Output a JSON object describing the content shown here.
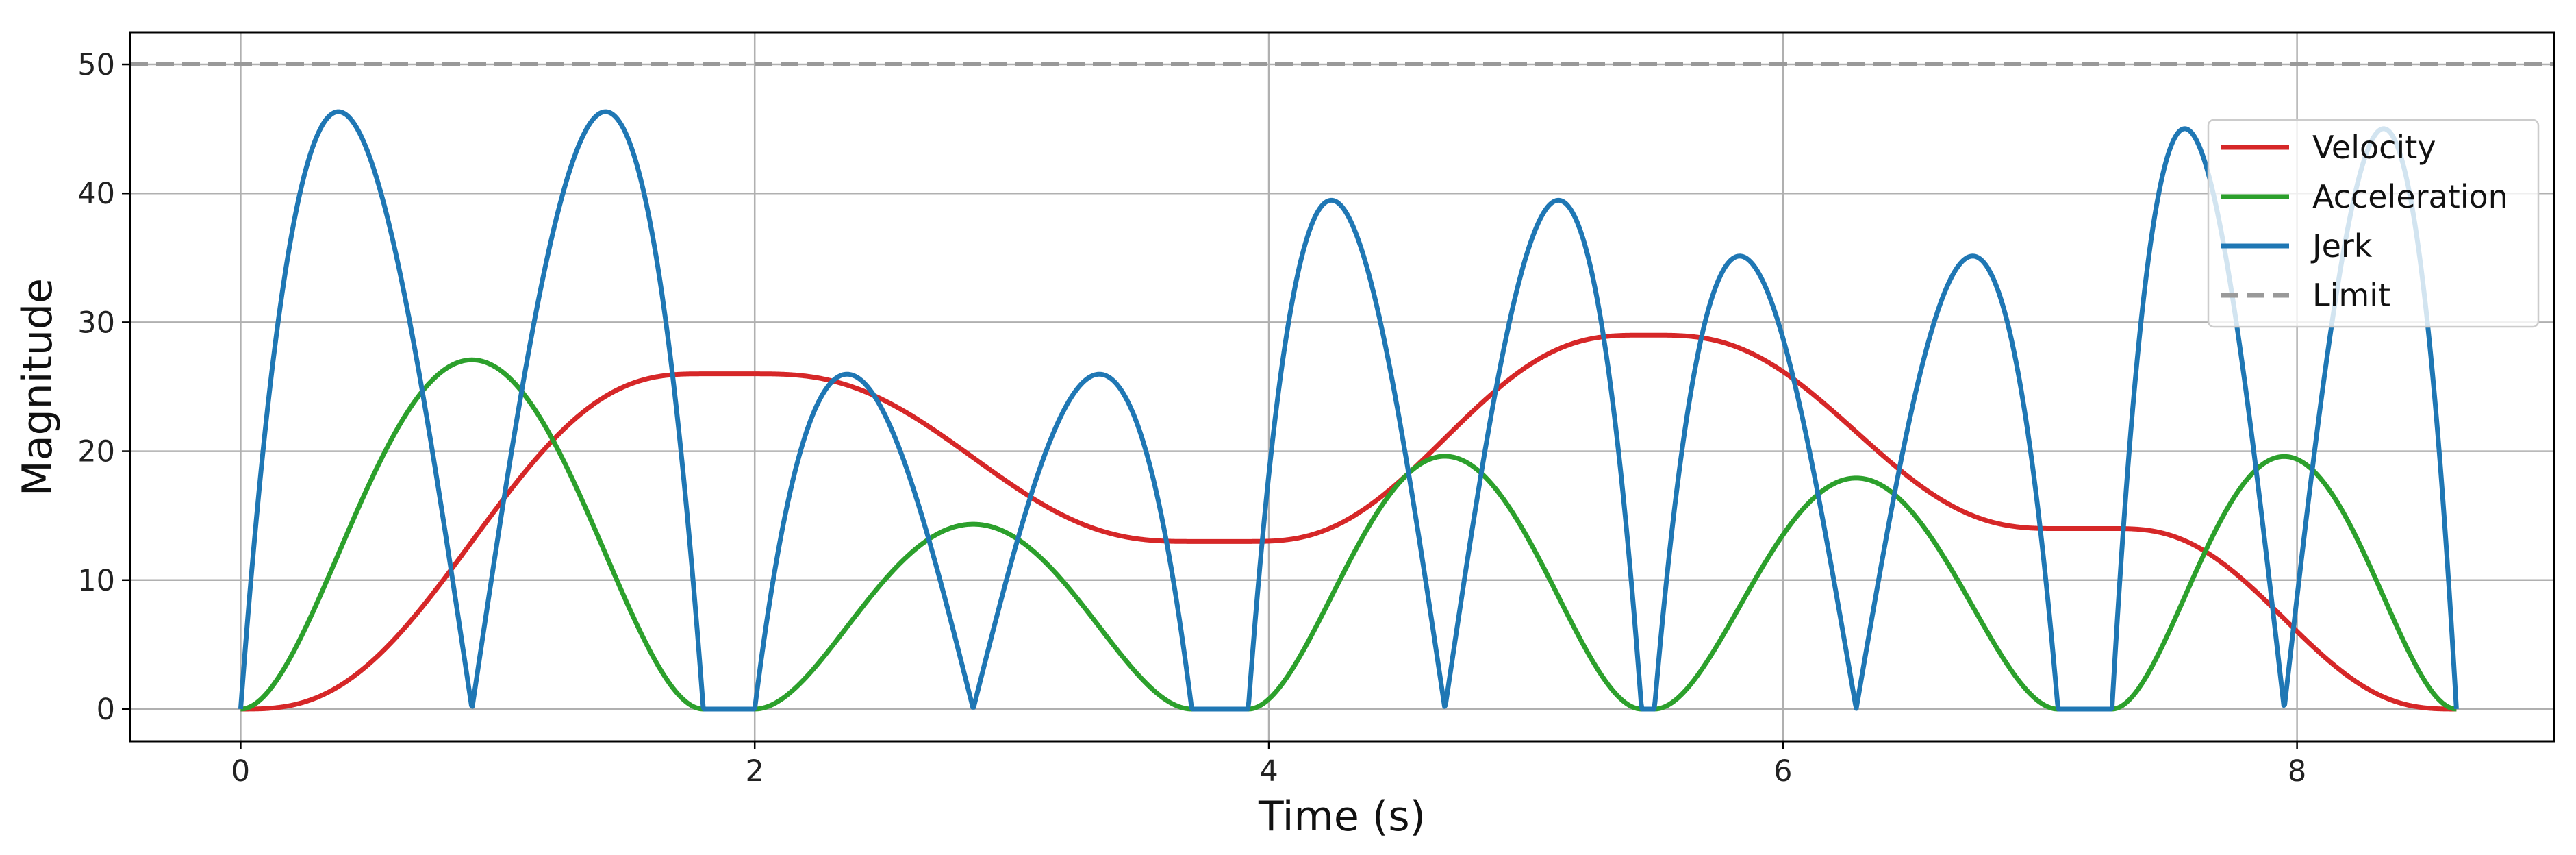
{
  "chart_data": {
    "type": "line",
    "title": "",
    "xlabel": "Time (s)",
    "ylabel": "Magnitude",
    "xlim": [
      -0.43,
      9.0
    ],
    "ylim": [
      -2.5,
      52.5
    ],
    "xticks": [
      0,
      2,
      4,
      6,
      8
    ],
    "yticks": [
      0,
      10,
      20,
      30,
      40,
      50
    ],
    "grid": true,
    "legend_position": "top-right",
    "segments": [
      {
        "t0": 0.0,
        "t1": 1.8,
        "v0": 0,
        "v1": 26
      },
      {
        "t0": 1.8,
        "t1": 2.0,
        "v0": 26,
        "v1": 26
      },
      {
        "t0": 2.0,
        "t1": 3.7,
        "v0": 26,
        "v1": 13
      },
      {
        "t0": 3.7,
        "t1": 3.92,
        "v0": 13,
        "v1": 13
      },
      {
        "t0": 3.92,
        "t1": 5.45,
        "v0": 13,
        "v1": 29
      },
      {
        "t0": 5.45,
        "t1": 5.5,
        "v0": 29,
        "v1": 29
      },
      {
        "t0": 5.5,
        "t1": 7.07,
        "v0": 29,
        "v1": 14
      },
      {
        "t0": 7.07,
        "t1": 7.28,
        "v0": 14,
        "v1": 14
      },
      {
        "t0": 7.28,
        "t1": 8.62,
        "v0": 14,
        "v1": 0
      }
    ],
    "limit": 50,
    "series": [
      {
        "name": "Velocity",
        "color": "#d62728",
        "kind": "velocity"
      },
      {
        "name": "Acceleration",
        "color": "#2ca02c",
        "kind": "acceleration"
      },
      {
        "name": "Jerk",
        "color": "#1f77b4",
        "kind": "jerk"
      },
      {
        "name": "Limit",
        "color": "#999999",
        "kind": "limit",
        "dashed": true
      }
    ]
  }
}
